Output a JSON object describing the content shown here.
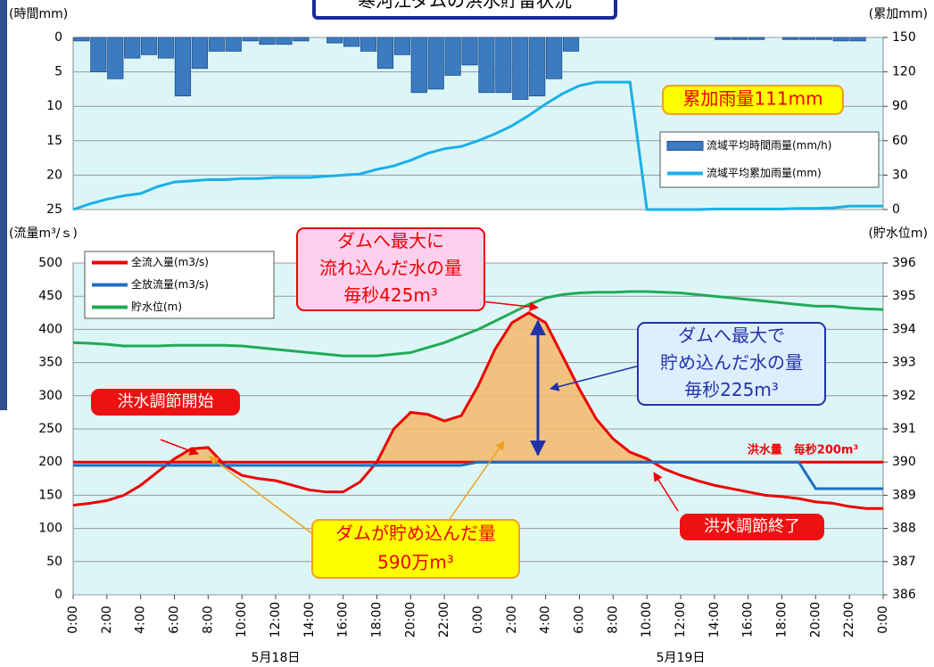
{
  "title": "寒河江ダムの洪水貯留状況",
  "chart_data": [
    {
      "type": "combo",
      "ylabel": "(時間mm)",
      "y2label": "(累加mm)",
      "ylim": [
        0,
        25
      ],
      "y_reversed": true,
      "yticks": [
        0,
        5,
        10,
        15,
        20,
        25
      ],
      "y2lim": [
        0,
        150
      ],
      "y2ticks": [
        0,
        30,
        60,
        90,
        120,
        150
      ],
      "xlim": [
        0,
        48
      ],
      "grid": true,
      "series": [
        {
          "name": "流域平均時間雨量(mm/h)",
          "kind": "bar",
          "color": "#3c7bbf",
          "x": [
            0.5,
            1.5,
            2.5,
            3.5,
            4.5,
            5.5,
            6.5,
            7.5,
            8.5,
            9.5,
            10.5,
            11.5,
            12.5,
            13.5,
            14.5,
            15.5,
            16.5,
            17.5,
            18.5,
            19.5,
            20.5,
            21.5,
            22.5,
            23.5,
            24.5,
            25.5,
            26.5,
            27.5,
            28.5,
            29.5,
            30.5,
            31.5,
            32.5,
            33.5,
            34.5,
            35.5,
            36.5,
            37.5,
            38.5,
            39.5,
            40.5,
            41.5,
            42.5,
            43.5,
            44.5,
            45.5,
            46.5,
            47.5
          ],
          "values": [
            0.5,
            5,
            6,
            3,
            2.5,
            3,
            8.5,
            4.5,
            2,
            2,
            0.5,
            1,
            1,
            0.5,
            0,
            0.8,
            1.3,
            2,
            4.5,
            2.5,
            8,
            7.5,
            5.5,
            4,
            8,
            8,
            9,
            8.5,
            6,
            2,
            0,
            0,
            0,
            0,
            0,
            0,
            0,
            0,
            0.3,
            0.3,
            0.3,
            0,
            0.3,
            0.3,
            0.3,
            0.5,
            0.5,
            0
          ]
        },
        {
          "name": "流域平均累加雨量(mm)",
          "kind": "line",
          "axis": "y2",
          "color": "#1ab0e8",
          "x": [
            0,
            1,
            2,
            3,
            4,
            5,
            6,
            7,
            8,
            9,
            10,
            11,
            12,
            13,
            14,
            15,
            16,
            17,
            18,
            19,
            20,
            21,
            22,
            23,
            24,
            25,
            26,
            27,
            28,
            29,
            30,
            31,
            32,
            33,
            34,
            35,
            36,
            37,
            38,
            39,
            40,
            41,
            42,
            43,
            44,
            45,
            46,
            47,
            48
          ],
          "values": [
            0,
            5,
            9,
            12,
            14,
            20,
            24,
            25,
            26,
            26,
            27,
            27,
            28,
            28,
            28,
            29,
            30,
            31,
            35,
            38,
            43,
            49,
            53,
            55,
            60,
            66,
            73,
            82,
            92,
            101,
            108,
            111,
            111,
            111,
            0,
            0,
            0,
            0,
            0.5,
            0.5,
            0.5,
            0.5,
            0.5,
            1,
            1,
            1.5,
            3,
            3,
            3
          ]
        }
      ],
      "annotations": [
        {
          "lines": [
            "累加雨量111mm"
          ]
        }
      ]
    },
    {
      "type": "combo",
      "ylabel": "(流量m³/ｓ)",
      "y2label": "(貯水位m)",
      "ylim": [
        0,
        500
      ],
      "yticks": [
        0,
        50,
        100,
        150,
        200,
        250,
        300,
        350,
        400,
        450,
        500
      ],
      "y2lim": [
        386,
        396
      ],
      "y2ticks": [
        386,
        387,
        388,
        389,
        390,
        391,
        392,
        393,
        394,
        395,
        396
      ],
      "xlim": [
        0,
        48
      ],
      "grid": true,
      "xticks": [
        {
          "value": 0,
          "label": "0:00"
        },
        {
          "value": 2,
          "label": "2:00"
        },
        {
          "value": 4,
          "label": "4:00"
        },
        {
          "value": 6,
          "label": "6:00"
        },
        {
          "value": 8,
          "label": "8:00"
        },
        {
          "value": 10,
          "label": "10:00"
        },
        {
          "value": 12,
          "label": "12:00"
        },
        {
          "value": 14,
          "label": "14:00"
        },
        {
          "value": 16,
          "label": "16:00"
        },
        {
          "value": 18,
          "label": "18:00"
        },
        {
          "value": 20,
          "label": "20:00"
        },
        {
          "value": 22,
          "label": "22:00"
        },
        {
          "value": 24,
          "label": "0:00"
        },
        {
          "value": 26,
          "label": "2:00"
        },
        {
          "value": 28,
          "label": "4:00"
        },
        {
          "value": 30,
          "label": "6:00"
        },
        {
          "value": 32,
          "label": "8:00"
        },
        {
          "value": 34,
          "label": "10:00"
        },
        {
          "value": 36,
          "label": "12:00"
        },
        {
          "value": 38,
          "label": "14:00"
        },
        {
          "value": 40,
          "label": "16:00"
        },
        {
          "value": 42,
          "label": "18:00"
        },
        {
          "value": 44,
          "label": "20:00"
        },
        {
          "value": 46,
          "label": "22:00"
        },
        {
          "value": 48,
          "label": "0:00"
        }
      ],
      "date_labels": [
        {
          "value": 12,
          "label": "5月18日"
        },
        {
          "value": 36,
          "label": "5月19日"
        }
      ],
      "reference": {
        "value": 200,
        "label": "洪水量　毎秒200m³",
        "color": "#ee0000",
        "fill": "#f5b86a"
      },
      "series": [
        {
          "name": "全流入量(m3/s)",
          "kind": "line",
          "color": "#ee0000",
          "x": [
            0,
            1,
            2,
            3,
            4,
            5,
            6,
            7,
            8,
            9,
            10,
            11,
            12,
            13,
            14,
            15,
            16,
            17,
            18,
            19,
            20,
            21,
            22,
            23,
            24,
            25,
            26,
            27,
            28,
            29,
            30,
            31,
            32,
            33,
            34,
            35,
            36,
            37,
            38,
            39,
            40,
            41,
            42,
            43,
            44,
            45,
            46,
            47,
            48
          ],
          "values": [
            135,
            138,
            142,
            150,
            165,
            185,
            205,
            220,
            222,
            195,
            180,
            175,
            172,
            165,
            158,
            155,
            155,
            170,
            200,
            250,
            275,
            272,
            262,
            270,
            315,
            370,
            410,
            425,
            410,
            360,
            310,
            265,
            235,
            215,
            205,
            190,
            180,
            172,
            165,
            160,
            155,
            150,
            148,
            145,
            140,
            138,
            133,
            130,
            130
          ]
        },
        {
          "name": "全放流量(m3/s)",
          "kind": "line",
          "color": "#1f6fbf",
          "x": [
            0,
            1,
            2,
            3,
            4,
            5,
            6,
            7,
            8,
            9,
            10,
            11,
            12,
            13,
            14,
            15,
            16,
            17,
            18,
            19,
            20,
            21,
            22,
            23,
            24,
            25,
            26,
            27,
            28,
            29,
            30,
            31,
            32,
            33,
            34,
            35,
            36,
            37,
            38,
            39,
            40,
            41,
            42,
            43,
            44,
            45,
            46,
            47,
            48
          ],
          "values": [
            195,
            195,
            195,
            195,
            195,
            195,
            195,
            195,
            195,
            195,
            195,
            195,
            195,
            195,
            195,
            195,
            195,
            195,
            195,
            195,
            195,
            195,
            195,
            195,
            200,
            200,
            200,
            200,
            200,
            200,
            200,
            200,
            200,
            200,
            200,
            200,
            200,
            200,
            200,
            200,
            200,
            200,
            200,
            200,
            160,
            160,
            160,
            160,
            160
          ]
        },
        {
          "name": "貯水位(m)",
          "kind": "line",
          "axis": "y2",
          "color": "#22aa55",
          "x": [
            0,
            1,
            2,
            3,
            4,
            5,
            6,
            7,
            8,
            9,
            10,
            11,
            12,
            13,
            14,
            15,
            16,
            17,
            18,
            19,
            20,
            21,
            22,
            23,
            24,
            25,
            26,
            27,
            28,
            29,
            30,
            31,
            32,
            33,
            34,
            35,
            36,
            37,
            38,
            39,
            40,
            41,
            42,
            43,
            44,
            45,
            46,
            47,
            48
          ],
          "values": [
            393.6,
            393.58,
            393.55,
            393.5,
            393.5,
            393.5,
            393.52,
            393.52,
            393.52,
            393.52,
            393.5,
            393.45,
            393.4,
            393.35,
            393.3,
            393.25,
            393.2,
            393.2,
            393.2,
            393.25,
            393.3,
            393.45,
            393.6,
            393.8,
            394.0,
            394.25,
            394.5,
            394.75,
            394.95,
            395.05,
            395.1,
            395.12,
            395.12,
            395.14,
            395.14,
            395.12,
            395.1,
            395.05,
            395.0,
            394.95,
            394.9,
            394.85,
            394.8,
            394.75,
            394.7,
            394.7,
            394.65,
            394.62,
            394.6
          ]
        }
      ],
      "annotations": [
        {
          "lines": [
            "ダムへ最大に",
            "流れ込んだ水の量",
            "毎秒425m³"
          ]
        },
        {
          "lines": [
            "ダムへ最大で",
            "貯め込んだ水の量",
            "毎秒225m³"
          ]
        },
        {
          "lines": [
            "洪水調節開始"
          ]
        },
        {
          "lines": [
            "洪水調節終了"
          ]
        },
        {
          "lines": [
            "ダムが貯め込んだ量",
            "590万m³"
          ]
        }
      ]
    }
  ]
}
